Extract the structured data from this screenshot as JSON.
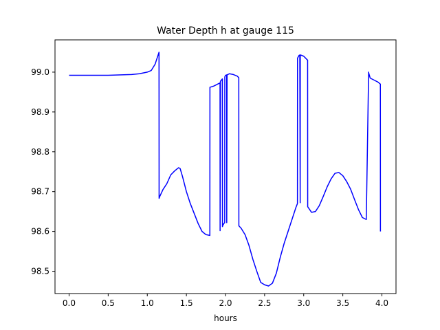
{
  "chart_data": {
    "type": "line",
    "title": "Water Depth h at gauge 115",
    "xlabel": "hours",
    "ylabel": "",
    "xlim": [
      -0.18,
      4.18
    ],
    "ylim": [
      98.444,
      99.081
    ],
    "xticks": [
      "0.0",
      "0.5",
      "1.0",
      "1.5",
      "2.0",
      "2.5",
      "3.0",
      "3.5",
      "4.0"
    ],
    "yticks": [
      "98.5",
      "98.6",
      "98.7",
      "98.8",
      "98.9",
      "99.0"
    ],
    "grid": false,
    "series": [
      {
        "color": "#0000ff",
        "x": [
          0.0,
          0.5,
          0.8,
          0.9,
          1.0,
          1.05,
          1.1,
          1.15,
          1.151,
          1.16,
          1.2,
          1.25,
          1.3,
          1.35,
          1.4,
          1.42,
          1.45,
          1.5,
          1.55,
          1.6,
          1.65,
          1.7,
          1.75,
          1.8,
          1.801,
          1.85,
          1.9,
          1.93,
          1.931,
          1.935,
          1.96,
          1.961,
          1.965,
          1.98,
          1.99,
          1.991,
          2.0,
          2.015,
          2.016,
          2.02,
          2.05,
          2.1,
          2.15,
          2.17,
          2.171,
          2.2,
          2.25,
          2.3,
          2.35,
          2.4,
          2.45,
          2.5,
          2.55,
          2.6,
          2.65,
          2.7,
          2.75,
          2.8,
          2.85,
          2.9,
          2.92,
          2.921,
          2.94,
          2.95,
          2.955,
          2.956,
          2.96,
          3.0,
          3.05,
          3.051,
          3.1,
          3.15,
          3.2,
          3.25,
          3.3,
          3.35,
          3.4,
          3.45,
          3.5,
          3.55,
          3.6,
          3.65,
          3.7,
          3.75,
          3.8,
          3.83,
          3.831,
          3.85,
          3.9,
          3.95,
          3.98,
          3.981
        ],
        "values": [
          98.992,
          98.992,
          98.994,
          98.996,
          99.0,
          99.004,
          99.02,
          99.05,
          98.683,
          98.688,
          98.705,
          98.72,
          98.742,
          98.752,
          98.76,
          98.758,
          98.738,
          98.7,
          98.67,
          98.645,
          98.62,
          98.6,
          98.592,
          98.59,
          98.962,
          98.965,
          98.97,
          98.973,
          98.602,
          98.977,
          98.983,
          98.612,
          98.615,
          98.62,
          98.622,
          98.988,
          98.992,
          98.993,
          98.622,
          98.993,
          98.996,
          98.994,
          98.99,
          98.986,
          98.614,
          98.608,
          98.592,
          98.565,
          98.53,
          98.5,
          98.472,
          98.466,
          98.463,
          98.47,
          98.495,
          98.535,
          98.57,
          98.6,
          98.63,
          98.66,
          98.67,
          99.035,
          99.042,
          99.043,
          98.672,
          99.043,
          99.043,
          99.04,
          99.03,
          98.662,
          98.648,
          98.65,
          98.665,
          98.688,
          98.712,
          98.732,
          98.746,
          98.748,
          98.74,
          98.725,
          98.706,
          98.68,
          98.655,
          98.635,
          98.63,
          99.0,
          98.998,
          98.985,
          98.98,
          98.975,
          98.97,
          98.6
        ]
      }
    ]
  }
}
